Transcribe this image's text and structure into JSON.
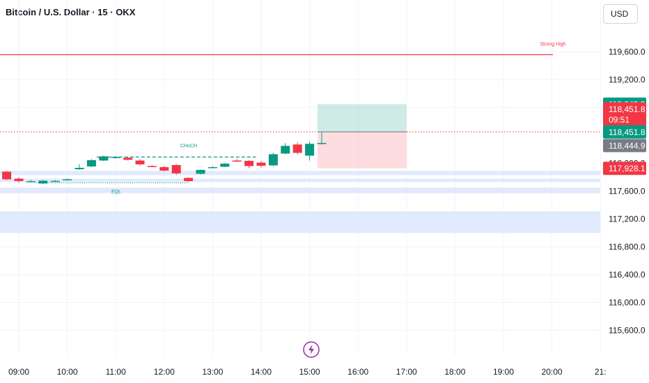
{
  "header": {
    "title": "Bitcoin / U.S. Dollar · 15 · OKX",
    "currency": "USD"
  },
  "colors": {
    "up": "#089981",
    "down": "#f23645",
    "grid": "#f0f3fa",
    "zone": "#dbe6fb",
    "axis_text": "#131722",
    "gray_label": "#787b86"
  },
  "chart_data": {
    "type": "candlestick",
    "x_ticks": [
      "09:00",
      "10:00",
      "11:00",
      "12:00",
      "13:00",
      "14:00",
      "15:00",
      "16:00",
      "17:00",
      "18:00",
      "19:00",
      "20:00",
      "21:"
    ],
    "y_ticks": [
      119600,
      119200,
      118800,
      117600,
      117200,
      116800,
      116400,
      116000,
      115600
    ],
    "y_tick_labels": [
      "119,600.0",
      "119,200.0",
      "118,800.0",
      "117,600.0",
      "117,200.0",
      "116,800.0",
      "116,400.0",
      "116,000.0",
      "115,600.0"
    ],
    "ylim": [
      115450,
      120000
    ],
    "candles": [
      {
        "time": "08:45",
        "open": 117880,
        "high": 117890,
        "low": 117760,
        "close": 117770
      },
      {
        "time": "09:00",
        "open": 117780,
        "high": 117800,
        "low": 117720,
        "close": 117745
      },
      {
        "time": "09:15",
        "open": 117740,
        "high": 117760,
        "low": 117730,
        "close": 117742
      },
      {
        "time": "09:30",
        "open": 117710,
        "high": 117760,
        "low": 117700,
        "close": 117750
      },
      {
        "time": "09:45",
        "open": 117745,
        "high": 117760,
        "low": 117735,
        "close": 117747
      },
      {
        "time": "10:00",
        "open": 117765,
        "high": 117780,
        "low": 117755,
        "close": 117770
      },
      {
        "time": "10:15",
        "open": 117915,
        "high": 117985,
        "low": 117905,
        "close": 117935
      },
      {
        "time": "10:30",
        "open": 117955,
        "high": 118060,
        "low": 117945,
        "close": 118045
      },
      {
        "time": "10:45",
        "open": 118040,
        "high": 118110,
        "low": 118030,
        "close": 118100
      },
      {
        "time": "11:00",
        "open": 118080,
        "high": 118100,
        "low": 118070,
        "close": 118090
      },
      {
        "time": "11:15",
        "open": 118080,
        "high": 118095,
        "low": 118040,
        "close": 118050
      },
      {
        "time": "11:30",
        "open": 118040,
        "high": 118060,
        "low": 117970,
        "close": 117985
      },
      {
        "time": "11:45",
        "open": 117960,
        "high": 117975,
        "low": 117950,
        "close": 117955
      },
      {
        "time": "12:00",
        "open": 117945,
        "high": 117960,
        "low": 117880,
        "close": 117895
      },
      {
        "time": "12:15",
        "open": 117975,
        "high": 117990,
        "low": 117835,
        "close": 117855
      },
      {
        "time": "12:30",
        "open": 117790,
        "high": 117800,
        "low": 117730,
        "close": 117745
      },
      {
        "time": "12:45",
        "open": 117850,
        "high": 117910,
        "low": 117840,
        "close": 117905
      },
      {
        "time": "13:00",
        "open": 117940,
        "high": 117960,
        "low": 117935,
        "close": 117945
      },
      {
        "time": "13:15",
        "open": 117950,
        "high": 118005,
        "low": 117945,
        "close": 117995
      },
      {
        "time": "13:30",
        "open": 118040,
        "high": 118060,
        "low": 118020,
        "close": 118030
      },
      {
        "time": "13:45",
        "open": 118035,
        "high": 118045,
        "low": 117930,
        "close": 117960
      },
      {
        "time": "14:00",
        "open": 118010,
        "high": 118030,
        "low": 117940,
        "close": 117965
      },
      {
        "time": "14:15",
        "open": 117970,
        "high": 118150,
        "low": 117960,
        "close": 118130
      },
      {
        "time": "14:30",
        "open": 118140,
        "high": 118290,
        "low": 118130,
        "close": 118250
      },
      {
        "time": "14:45",
        "open": 118270,
        "high": 118300,
        "low": 118130,
        "close": 118150
      },
      {
        "time": "15:00",
        "open": 118110,
        "high": 118310,
        "low": 118040,
        "close": 118280
      },
      {
        "time": "15:15",
        "open": 118290,
        "high": 118440,
        "low": 118270,
        "close": 118290
      }
    ],
    "levels": {
      "strong_high": 119560,
      "choch": 118090,
      "eql": 117720,
      "current": 118451.8
    },
    "zones": [
      {
        "from": 117830,
        "to": 117890
      },
      {
        "from": 117730,
        "to": 117780
      },
      {
        "from": 117570,
        "to": 117650
      },
      {
        "from": 117000,
        "to": 117310
      }
    ],
    "position": {
      "entry": 118451.8,
      "target": 118849.3,
      "stop": 117928.1,
      "start": "15:15",
      "end": "17:00"
    },
    "annotations": {
      "strong_high": "Strong High",
      "choch": "CHoCH",
      "eql": "EQL"
    },
    "price_labels": {
      "target": "118,849.3",
      "current": "118,451.8",
      "countdown": "09:51",
      "entry": "118,451.8",
      "gray": "118,444.9",
      "stop": "117,928.1",
      "partial_tick": "118,000.0"
    }
  }
}
